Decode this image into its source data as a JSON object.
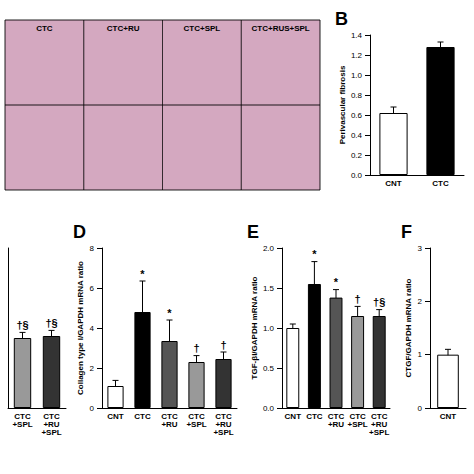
{
  "chart_data": [
    {
      "type": "image",
      "annotations": [
        "CTC",
        "CTC+RU",
        "CTC+SPL",
        "CTC+RUS+SPL"
      ]
    },
    {
      "type": "bar",
      "title": "B",
      "ylabel": "Perivascular fibrosis",
      "categories": [
        "CNT",
        "CTC"
      ],
      "values": [
        0.62,
        1.28
      ],
      "errors": [
        0.06,
        0.05
      ],
      "colors": [
        "white",
        "black"
      ],
      "ylim": [
        0,
        1.4
      ],
      "yticks": [
        {
          "value": 0,
          "label": "0.0"
        },
        0.2,
        0.4,
        0.6,
        0.8,
        {
          "value": 1.0,
          "label": "1.0"
        },
        1.2,
        1.4
      ],
      "grid": false
    },
    {
      "type": "bar",
      "categories": [
        "CTC\n+SPL",
        "CTC\n+RU\n+SPL"
      ],
      "values": [
        3.5,
        3.6
      ],
      "errors": [
        0.28,
        0.28
      ],
      "colors": [
        "#999999",
        "#333333"
      ],
      "annotations": [
        "†§",
        "†§"
      ],
      "ylim": [
        0,
        8
      ],
      "tick_labels": "x",
      "grid": false
    },
    {
      "type": "bar",
      "title": "D",
      "ylabel": "Collagen type I/GAPDH mRNA ratio",
      "categories": [
        "CNT",
        "CTC",
        "CTC\n+RU",
        "CTC\n+SPL",
        "CTC\n+RU\n+SPL"
      ],
      "values": [
        1.1,
        4.8,
        3.35,
        2.3,
        2.45
      ],
      "errors": [
        0.28,
        1.55,
        1.05,
        0.32,
        0.35
      ],
      "colors": [
        "white",
        "black",
        "#555555",
        "#999999",
        "#333333"
      ],
      "annotations": [
        null,
        "*",
        "*",
        "†",
        "†"
      ],
      "ylim": [
        0,
        8
      ],
      "yticks": [
        0,
        2,
        4,
        6,
        8
      ],
      "grid": false
    },
    {
      "type": "bar",
      "title": "E",
      "ylabel": "TGF-βI/GAPDH mRNA ratio",
      "categories": [
        "CNT",
        "CTC",
        "CTC\n+RU",
        "CTC\n+SPL",
        "CTC\n+RU\n+SPL"
      ],
      "values": [
        1.0,
        1.55,
        1.38,
        1.15,
        1.15
      ],
      "errors": [
        0.05,
        0.28,
        0.1,
        0.12,
        0.08
      ],
      "colors": [
        "white",
        "black",
        "#555555",
        "#999999",
        "#333333"
      ],
      "annotations": [
        null,
        "*",
        "*",
        "†",
        "†§"
      ],
      "ylim": [
        0,
        2
      ],
      "yticks": [
        {
          "value": 0,
          "label": "0.0"
        },
        0.5,
        {
          "value": 1.0,
          "label": "1.0"
        },
        1.5,
        {
          "value": 2.0,
          "label": "2.0"
        }
      ],
      "grid": false
    },
    {
      "type": "bar",
      "title": "F",
      "ylabel": "CTGF/GAPDH mRNA ratio",
      "categories": [
        "CNT"
      ],
      "values": [
        1.0
      ],
      "errors": [
        0.1
      ],
      "colors": [
        "white"
      ],
      "ylim": [
        0,
        3
      ],
      "yticks": [
        0,
        1,
        2,
        3
      ],
      "grid": false
    }
  ]
}
